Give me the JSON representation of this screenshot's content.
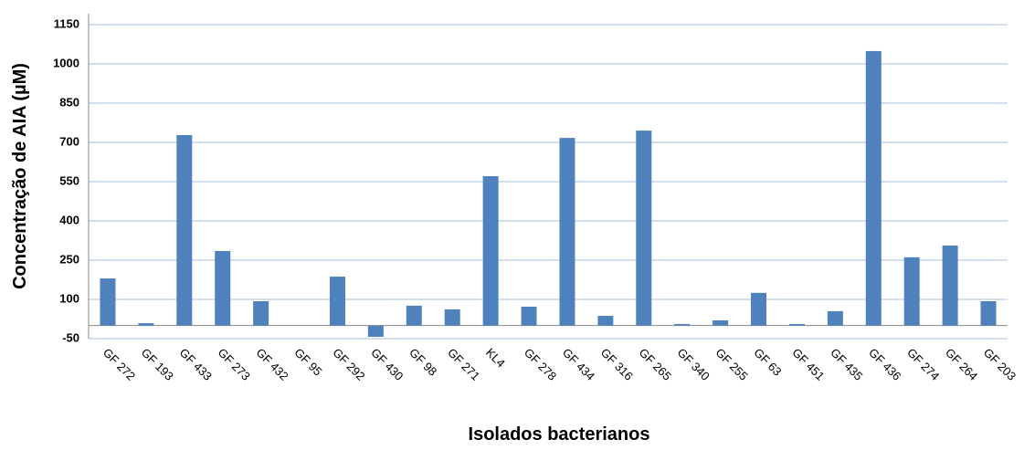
{
  "chart_data": {
    "type": "bar",
    "x_label": "Isolados bacterianos",
    "y_label": "Concentração de AIA  (µM)",
    "categories": [
      "GF 272",
      "GF 193",
      "GF 433",
      "GF 273",
      "GF 432",
      "GF 95",
      "GF 292",
      "GF 430",
      "GF 98",
      "GF 271",
      "KL4",
      "GF 278",
      "GF 434",
      "GF 316",
      "GF 265",
      "GF 340",
      "GF 255",
      "GF 63",
      "GF 451",
      "GF 435",
      "GF 436",
      "GF 274",
      "GF 264",
      "GF 203"
    ],
    "values": [
      180,
      9,
      728,
      285,
      93,
      0,
      187,
      -43,
      76,
      62,
      571,
      72,
      717,
      37,
      745,
      6,
      20,
      125,
      6,
      55,
      1049,
      261,
      306,
      93
    ],
    "color": "#4f81bd",
    "ylim": [
      -50,
      1150
    ],
    "yticks": [
      -50,
      100,
      250,
      400,
      550,
      700,
      850,
      1000,
      1150
    ],
    "grid": true
  }
}
